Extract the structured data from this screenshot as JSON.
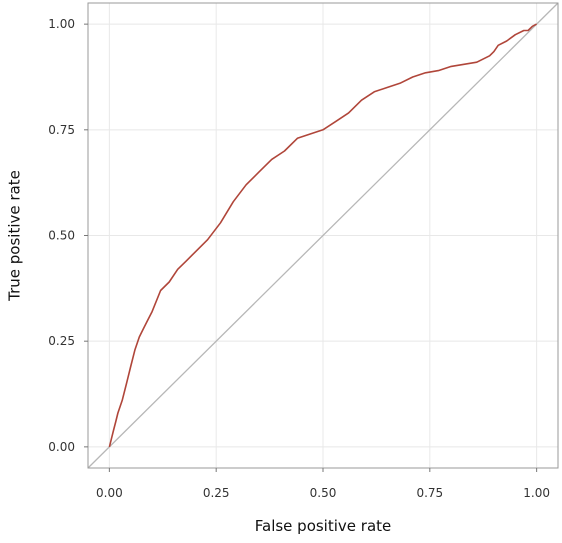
{
  "chart_data": {
    "type": "line",
    "title": "",
    "xlabel": "False positive rate",
    "ylabel": "True positive rate",
    "xlim": [
      -0.05,
      1.05
    ],
    "ylim": [
      -0.05,
      1.05
    ],
    "x_ticks": [
      0.0,
      0.25,
      0.5,
      0.75,
      1.0
    ],
    "y_ticks": [
      0.0,
      0.25,
      0.5,
      0.75,
      1.0
    ],
    "x_tick_labels": [
      "0.00",
      "0.25",
      "0.50",
      "0.75",
      "1.00"
    ],
    "y_tick_labels": [
      "0.00",
      "0.25",
      "0.50",
      "0.75",
      "1.00"
    ],
    "grid": true,
    "legend": "none",
    "series": [
      {
        "kind": "roc-curve",
        "color": "#b0463a",
        "x": [
          0.0,
          0.005,
          0.01,
          0.015,
          0.02,
          0.03,
          0.04,
          0.05,
          0.06,
          0.07,
          0.08,
          0.09,
          0.1,
          0.12,
          0.14,
          0.16,
          0.18,
          0.2,
          0.23,
          0.26,
          0.29,
          0.32,
          0.35,
          0.38,
          0.41,
          0.44,
          0.47,
          0.5,
          0.53,
          0.56,
          0.59,
          0.62,
          0.65,
          0.68,
          0.71,
          0.74,
          0.77,
          0.8,
          0.83,
          0.86,
          0.89,
          0.9,
          0.91,
          0.93,
          0.95,
          0.97,
          0.98,
          0.99,
          1.0
        ],
        "y": [
          0.0,
          0.02,
          0.04,
          0.06,
          0.08,
          0.11,
          0.15,
          0.19,
          0.23,
          0.26,
          0.28,
          0.3,
          0.32,
          0.37,
          0.39,
          0.42,
          0.44,
          0.46,
          0.49,
          0.53,
          0.58,
          0.62,
          0.65,
          0.68,
          0.7,
          0.73,
          0.74,
          0.75,
          0.77,
          0.79,
          0.82,
          0.84,
          0.85,
          0.86,
          0.875,
          0.885,
          0.89,
          0.9,
          0.905,
          0.91,
          0.925,
          0.935,
          0.95,
          0.96,
          0.975,
          0.985,
          0.985,
          0.995,
          1.0
        ]
      },
      {
        "kind": "reference-diagonal",
        "color": "#b7b7b7",
        "x": [
          -0.05,
          1.05
        ],
        "y": [
          -0.05,
          1.05
        ]
      }
    ]
  }
}
